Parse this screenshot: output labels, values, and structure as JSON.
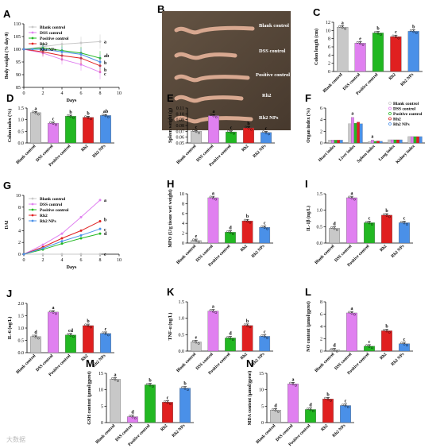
{
  "colors": {
    "blank": "#c8c8c8",
    "dss": "#e080f0",
    "positive": "#22b822",
    "rh2": "#e02020",
    "rh2nps": "#4a90e8"
  },
  "watermark": "大数据",
  "categories": [
    "Blank control",
    "DSS control",
    "Positive control",
    "Rh2",
    "Rh2 NPs"
  ],
  "photo": {
    "letter": "B",
    "labels": [
      "Blank control",
      "DSS control",
      "Positive control",
      "Rh2",
      "Rh2 NPs"
    ]
  },
  "chart_data": [
    {
      "id": "A",
      "type": "line",
      "xlabel": "Days",
      "ylabel": "Body weight (% day 0)",
      "x": [
        0,
        2,
        4,
        6,
        8
      ],
      "xlim": [
        0,
        10
      ],
      "ylim": [
        85,
        110
      ],
      "xticks": [
        0,
        2,
        4,
        6,
        8,
        10
      ],
      "yticks": [
        85,
        90,
        95,
        100,
        105,
        110
      ],
      "legend": [
        "Blank control",
        "DSS control",
        "Positive control",
        "Rh2",
        "Rh2 NPs"
      ],
      "series": [
        {
          "name": "Blank control",
          "values": [
            100,
            101,
            102,
            102.5,
            103
          ],
          "sig": "a"
        },
        {
          "name": "DSS control",
          "values": [
            100,
            98.5,
            96,
            94,
            91
          ],
          "sig": "c"
        },
        {
          "name": "Positive control",
          "values": [
            100,
            100.5,
            99.5,
            98.5,
            96.5
          ],
          "sig": "ab"
        },
        {
          "name": "Rh2",
          "values": [
            100,
            99,
            97.5,
            96.5,
            93.5
          ],
          "sig": "b"
        },
        {
          "name": "Rh2 NPs",
          "values": [
            100,
            100,
            99,
            98,
            95
          ],
          "sig": "b"
        }
      ]
    },
    {
      "id": "C",
      "type": "bar",
      "ylabel": "Colon length (cm)",
      "ylim": [
        0,
        12
      ],
      "yticks": [
        0,
        2,
        4,
        6,
        8,
        10,
        12
      ],
      "values": [
        10.8,
        6.9,
        9.4,
        8.5,
        9.8
      ],
      "sig": [
        "a",
        "e",
        "b",
        "c",
        "b"
      ]
    },
    {
      "id": "D",
      "type": "bar",
      "ylabel": "Colon index (%)",
      "ylim": [
        0,
        1.5
      ],
      "yticks": [
        0.0,
        0.5,
        1.0,
        1.5
      ],
      "values": [
        1.3,
        0.85,
        1.15,
        1.1,
        1.18
      ],
      "sig": [
        "a",
        "c",
        "b",
        "b",
        "ab"
      ]
    },
    {
      "id": "E",
      "type": "bar",
      "ylabel": "Spleen weight (g)",
      "ylim": [
        0.05,
        0.11
      ],
      "yticks": [
        0.05,
        0.06,
        0.07,
        0.08,
        0.09,
        0.1,
        0.11
      ],
      "values": [
        0.07,
        0.097,
        0.069,
        0.076,
        0.068
      ],
      "sig": [
        "c",
        "a",
        "c",
        "b",
        "c"
      ]
    },
    {
      "id": "F",
      "type": "bar",
      "ylabel": "Organ index (%)",
      "ylim": [
        0,
        6
      ],
      "yticks": [
        0,
        2,
        4,
        6
      ],
      "groups": [
        "Heart index",
        "Liver index",
        "Spleen index",
        "Lung index",
        "Kidney index"
      ],
      "legend": [
        "Blank control",
        "DSS control",
        "Positive control",
        "Rh2",
        "Rh2 NPs"
      ],
      "series": [
        {
          "name": "Blank control",
          "values": [
            0.5,
            3.3,
            0.25,
            0.55,
            1.1
          ]
        },
        {
          "name": "DSS control",
          "values": [
            0.5,
            4.4,
            0.5,
            0.55,
            1.1
          ]
        },
        {
          "name": "Positive control",
          "values": [
            0.5,
            3.4,
            0.3,
            0.55,
            1.1
          ]
        },
        {
          "name": "Rh2",
          "values": [
            0.5,
            3.6,
            0.35,
            0.55,
            1.1
          ]
        },
        {
          "name": "Rh2 NPs",
          "values": [
            0.5,
            3.3,
            0.3,
            0.55,
            1.1
          ]
        }
      ],
      "sig": [
        "",
        "a",
        "a",
        "",
        ""
      ]
    },
    {
      "id": "G",
      "type": "line",
      "xlabel": "Days",
      "ylabel": "DAI",
      "x": [
        0,
        2,
        4,
        6,
        8
      ],
      "xlim": [
        0,
        10
      ],
      "ylim": [
        0,
        10
      ],
      "xticks": [
        0,
        2,
        4,
        6,
        8,
        10
      ],
      "yticks": [
        0,
        2,
        4,
        6,
        8,
        10
      ],
      "legend": [
        "Blank control",
        "DSS control",
        "Positive control",
        "Rh2",
        "Rh2 NPs"
      ],
      "series": [
        {
          "name": "Blank control",
          "values": [
            0,
            0,
            0,
            0,
            0
          ],
          "sig": "e"
        },
        {
          "name": "DSS control",
          "values": [
            0,
            1.6,
            3.5,
            6.3,
            9.2
          ],
          "sig": "a"
        },
        {
          "name": "Positive control",
          "values": [
            0,
            0.8,
            1.8,
            2.7,
            3.5
          ],
          "sig": "d"
        },
        {
          "name": "Rh2",
          "values": [
            0,
            1.2,
            2.7,
            4.0,
            5.6
          ],
          "sig": "b"
        },
        {
          "name": "Rh2 NPs",
          "values": [
            0,
            1.0,
            2.2,
            3.2,
            4.3
          ],
          "sig": "c"
        }
      ]
    },
    {
      "id": "H",
      "type": "bar",
      "ylabel": "MPO (U/g tissue wet weight)",
      "ylim": [
        0,
        10
      ],
      "yticks": [
        0,
        2,
        4,
        6,
        8,
        10
      ],
      "values": [
        0.5,
        9.2,
        2.2,
        4.5,
        3.2
      ],
      "sig": [
        "e",
        "a",
        "d",
        "b",
        "c"
      ]
    },
    {
      "id": "I",
      "type": "bar",
      "ylabel": "IL-1β (ng/L)",
      "ylim": [
        0,
        1.5
      ],
      "yticks": [
        0.0,
        0.5,
        1.0,
        1.5
      ],
      "values": [
        0.45,
        1.38,
        0.62,
        0.85,
        0.62
      ],
      "sig": [
        "d",
        "a",
        "c",
        "b",
        "c"
      ]
    },
    {
      "id": "J",
      "type": "bar",
      "ylabel": "IL-6 (ng/L)",
      "ylim": [
        0,
        2.0
      ],
      "yticks": [
        0.0,
        0.5,
        1.0,
        1.5,
        2.0
      ],
      "values": [
        0.65,
        1.65,
        0.72,
        1.1,
        0.78
      ],
      "sig": [
        "d",
        "a",
        "cd",
        "b",
        "c"
      ]
    },
    {
      "id": "K",
      "type": "bar",
      "ylabel": "TNF-α (ng/L)",
      "ylim": [
        0,
        1.5
      ],
      "yticks": [
        0.0,
        0.5,
        1.0,
        1.5
      ],
      "values": [
        0.28,
        1.22,
        0.4,
        0.78,
        0.45
      ],
      "sig": [
        "e",
        "a",
        "d",
        "b",
        "c"
      ]
    },
    {
      "id": "L",
      "type": "bar",
      "ylabel": "NO content (μmol/gprot)",
      "ylim": [
        0,
        8
      ],
      "yticks": [
        0,
        2,
        4,
        6,
        8
      ],
      "values": [
        0.2,
        6.2,
        0.8,
        3.3,
        1.2
      ],
      "sig": [
        "d",
        "a",
        "c",
        "b",
        "c"
      ]
    },
    {
      "id": "M",
      "type": "bar",
      "ylabel": "GSH content (μmol/gprot)",
      "ylim": [
        0,
        15
      ],
      "yticks": [
        0,
        5,
        10,
        15
      ],
      "values": [
        13.2,
        1.8,
        11.5,
        6.2,
        10.5
      ],
      "sig": [
        "a",
        "d",
        "b",
        "c",
        "b"
      ]
    },
    {
      "id": "N",
      "type": "bar",
      "ylabel": "MDA content (μmol/gprot)",
      "ylim": [
        0,
        15
      ],
      "yticks": [
        0,
        5,
        10,
        15
      ],
      "values": [
        3.8,
        11.8,
        4.0,
        7.2,
        5.2
      ],
      "sig": [
        "d",
        "a",
        "d",
        "b",
        "c"
      ]
    }
  ]
}
